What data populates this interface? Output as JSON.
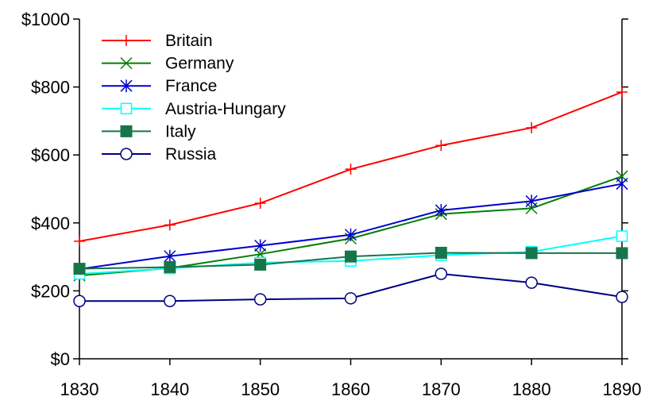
{
  "chart_data": {
    "type": "line",
    "title": "",
    "xlabel": "",
    "ylabel": "",
    "x": [
      1830,
      1840,
      1850,
      1860,
      1870,
      1880,
      1890
    ],
    "xlim": [
      1830,
      1890
    ],
    "ylim": [
      0,
      1000
    ],
    "x_ticks": [
      "1830",
      "1840",
      "1850",
      "1860",
      "1870",
      "1880",
      "1890"
    ],
    "y_ticks": [
      0,
      200,
      400,
      600,
      800,
      1000
    ],
    "y_tick_labels": [
      "$0",
      "$200",
      "$400",
      "$600",
      "$800",
      "$1000"
    ],
    "grid": false,
    "legend_position": "top-left",
    "series": [
      {
        "name": "Britain",
        "color": "#ff0000",
        "marker": "plus",
        "values": [
          346,
          394,
          458,
          558,
          628,
          680,
          785
        ]
      },
      {
        "name": "Germany",
        "color": "#008000",
        "marker": "x",
        "values": [
          245,
          267,
          308,
          354,
          426,
          443,
          537
        ]
      },
      {
        "name": "France",
        "color": "#0000cc",
        "marker": "asterisk",
        "values": [
          264,
          302,
          333,
          365,
          437,
          464,
          515
        ]
      },
      {
        "name": "Austria-Hungary",
        "color": "#00ffff",
        "marker": "square-open",
        "values": [
          250,
          266,
          283,
          288,
          305,
          315,
          361
        ]
      },
      {
        "name": "Italy",
        "color": "#17754a",
        "marker": "square-filled",
        "values": [
          265,
          270,
          277,
          301,
          312,
          311,
          311
        ]
      },
      {
        "name": "Russia",
        "color": "#000080",
        "marker": "circle-open",
        "values": [
          170,
          170,
          175,
          178,
          250,
          224,
          182
        ]
      }
    ]
  }
}
